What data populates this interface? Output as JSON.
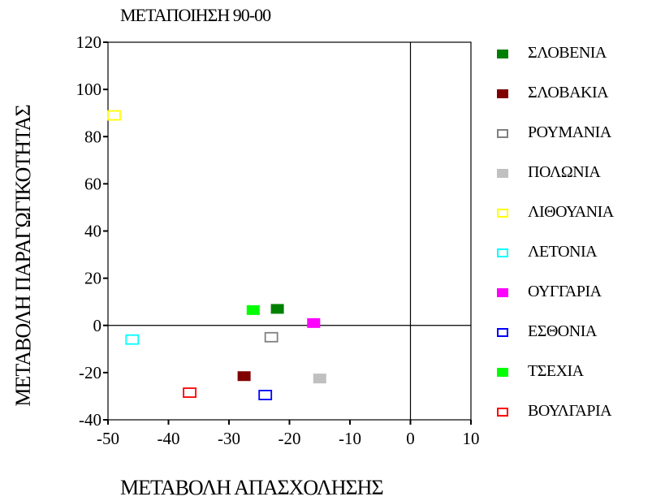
{
  "chart_data": {
    "type": "scatter",
    "title": "ΜΕΤΑΠΟΙΗΣΗ 90-00",
    "xlabel": "ΜΕΤΑΒΟΛΗ ΑΠΑΣΧΟΛΗΣΗΣ",
    "ylabel": "ΜΕΤΑΒΟΛΗ ΠΑΡΑΓΩΓΙΚΟΤΗΤΑΣ",
    "xlim": [
      -50,
      10
    ],
    "ylim": [
      -40,
      120
    ],
    "xticks": [
      -50,
      -40,
      -30,
      -20,
      -10,
      0,
      10
    ],
    "yticks": [
      -40,
      -20,
      0,
      20,
      40,
      60,
      80,
      100,
      120
    ],
    "reference_lines": {
      "x": 0,
      "y": 0
    },
    "grid": false,
    "legend_position": "right",
    "series": [
      {
        "name": "ΣΛΟΒΕΝΙΑ",
        "color": "#008000",
        "filled": true,
        "points": [
          [
            -22,
            7
          ]
        ]
      },
      {
        "name": "ΣΛΟΒΑΚΙΑ",
        "color": "#800000",
        "filled": true,
        "points": [
          [
            -27.5,
            -21.5
          ]
        ]
      },
      {
        "name": "ΡΟΥΜΑΝΙΑ",
        "color": "#808080",
        "filled": false,
        "points": [
          [
            -23,
            -5
          ]
        ]
      },
      {
        "name": "ΠΟΛΩΝΙΑ",
        "color": "#c0c0c0",
        "filled": true,
        "points": [
          [
            -15,
            -22.5
          ]
        ]
      },
      {
        "name": "ΛΙΘΟΥΑΝΙΑ",
        "color": "#ffff00",
        "filled": false,
        "points": [
          [
            -49,
            89
          ]
        ]
      },
      {
        "name": "ΛΕΤΟΝΙΑ",
        "color": "#00ffff",
        "filled": false,
        "points": [
          [
            -46,
            -6
          ]
        ]
      },
      {
        "name": "ΟΥΓΓΑΡΙΑ",
        "color": "#ff00ff",
        "filled": true,
        "points": [
          [
            -16,
            1
          ]
        ]
      },
      {
        "name": "ΕΣΘΟΝΙΑ",
        "color": "#0000ff",
        "filled": false,
        "points": [
          [
            -24,
            -29.5
          ]
        ]
      },
      {
        "name": "ΤΣΕΧΙΑ",
        "color": "#00ff00",
        "filled": true,
        "points": [
          [
            -26,
            6.5
          ]
        ]
      },
      {
        "name": "ΒΟΥΛΓΑΡΙΑ",
        "color": "#ff0000",
        "filled": false,
        "points": [
          [
            -36.5,
            -28.5
          ]
        ]
      }
    ]
  }
}
